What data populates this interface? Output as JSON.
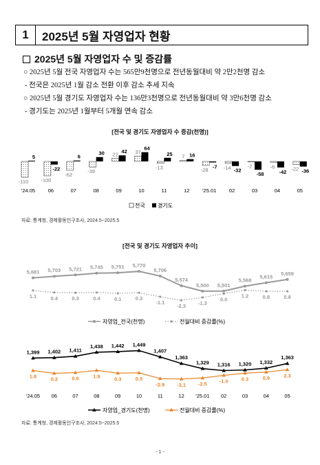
{
  "header": {
    "number": "1",
    "title": "2025년 5월 자영업자 현황"
  },
  "subheading": "2025년 5월 자영업자 수 및 증감률",
  "bullets": [
    "○ 2025년 5월 전국 자영업자 수는 565만9천명으로 전년동월대비 약 2만2천명 감소",
    "- 전국은 2025년 1월 감소 전환 이후 감소 추세 지속",
    "○ 2025년 5월 경기도 자영업자 수는 136만3천명으로 전년동월대비 약 3만6천명 감소",
    "- 경기도는 2025년 1월부터 5개월 연속 감소"
  ],
  "source_1": "자료: 통계청, 경제활동인구조사, 2024.5~2025.5",
  "source_2": "자료: 통계청, 경제활동인구조사, 2024.5~2025.5",
  "page_number": "- 1 -",
  "chart_data": [
    {
      "type": "bar",
      "title": "[전국 및 경기도 자영업자 수 증감(천명)]",
      "categories": [
        "'24.05",
        "06",
        "07",
        "08",
        "09",
        "10",
        "11",
        "12",
        "'25.01",
        "02",
        "03",
        "04",
        "05"
      ],
      "series": [
        {
          "name": "전국",
          "values": [
            -110,
            -100,
            -62,
            -39,
            22,
            37,
            -13,
            7,
            -28,
            -14,
            -2,
            -6,
            -22
          ],
          "color": "#ffffff"
        },
        {
          "name": "경기도",
          "values": [
            5,
            -22,
            6,
            30,
            42,
            64,
            25,
            16,
            -7,
            -32,
            -58,
            -42,
            -36
          ],
          "color": "#000000"
        }
      ],
      "legend": "bottom-center"
    },
    {
      "type": "line",
      "title": "[전국 및 경기도 자영업자 추이]",
      "categories": [
        "'24.05",
        "06",
        "07",
        "08",
        "09",
        "10",
        "11",
        "12",
        "'25.01",
        "02",
        "03",
        "04",
        "05"
      ],
      "series": [
        {
          "name": "자영업_전국(천명)",
          "values": [
            5681,
            5703,
            5721,
            5745,
            5751,
            5770,
            5706,
            5574,
            5500,
            5501,
            5568,
            5615,
            5659
          ],
          "color": "#999999"
        },
        {
          "name": "전월대비 증감률(%)",
          "values": [
            1.1,
            0.4,
            0.3,
            0.4,
            0.1,
            0.3,
            -1.1,
            -2.3,
            -1.3,
            0.0,
            1.2,
            0.8,
            0.8
          ],
          "color": "#999999",
          "style": "dotted"
        }
      ],
      "legend": "bottom-center"
    },
    {
      "type": "line",
      "categories": [
        "'24.05",
        "06",
        "07",
        "08",
        "09",
        "10",
        "11",
        "12",
        "'25.01",
        "02",
        "03",
        "04",
        "05"
      ],
      "series": [
        {
          "name": "자영업_경기도(천명)",
          "values": [
            1399,
            1402,
            1411,
            1438,
            1442,
            1449,
            1407,
            1363,
            1329,
            1316,
            1320,
            1332,
            1363
          ],
          "color": "#000000"
        },
        {
          "name": "전월대비 증감률(%)",
          "values": [
            1.8,
            0.2,
            0.6,
            1.9,
            0.3,
            0.5,
            -2.9,
            -3.1,
            -2.5,
            -1.0,
            0.3,
            0.9,
            2.3
          ],
          "color": "#e8862a"
        }
      ],
      "legend": "bottom-center"
    }
  ]
}
